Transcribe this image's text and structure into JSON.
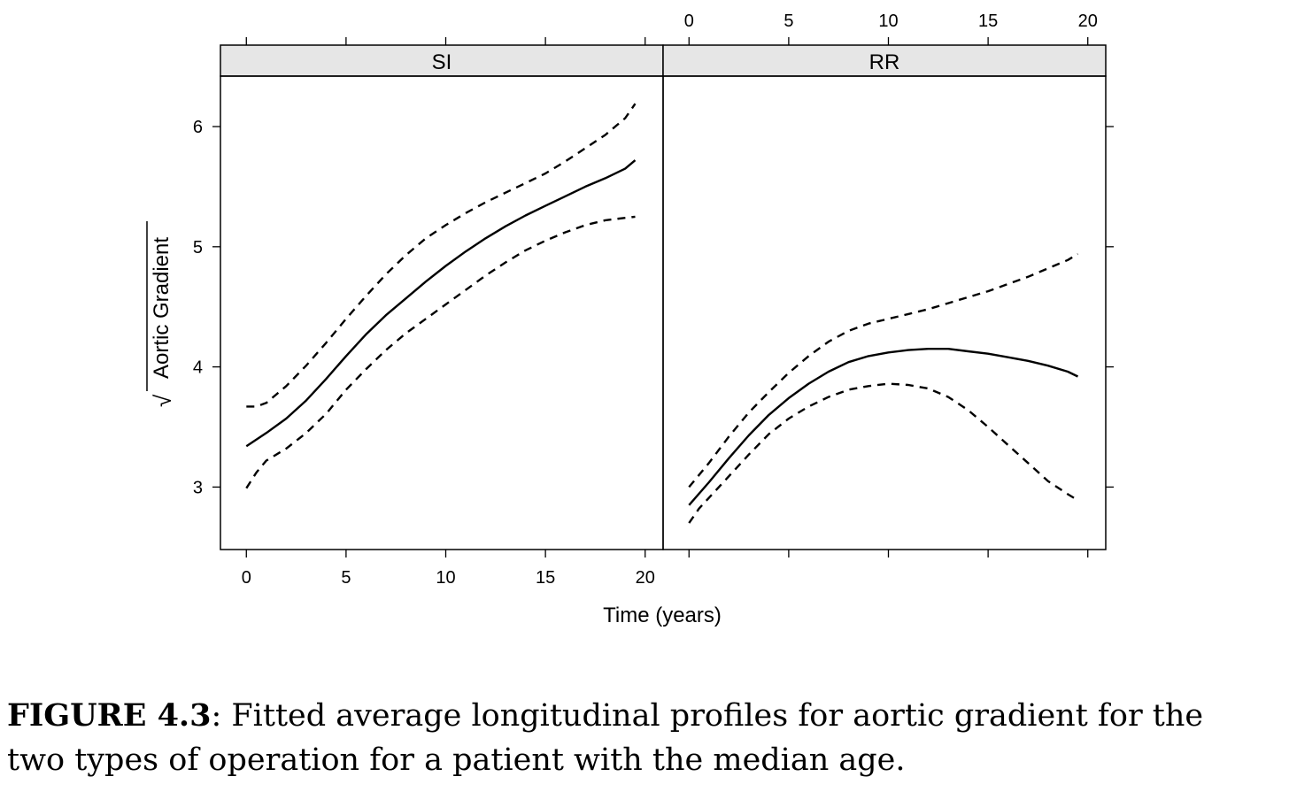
{
  "chart_data": {
    "type": "line",
    "ylabel_symbol": "√",
    "ylabel": "Aortic Gradient",
    "xlabel": "Time (years)",
    "xlim": [
      -1.3,
      20.9
    ],
    "ylim": [
      2.48,
      6.42
    ],
    "xticks": [
      "0",
      "5",
      "10",
      "15",
      "20"
    ],
    "yticks": [
      "3",
      "4",
      "5",
      "6"
    ],
    "xtick_values": [
      0,
      5,
      10,
      15,
      20
    ],
    "ytick_values": [
      3,
      4,
      5,
      6
    ],
    "grid": false,
    "legend": "none",
    "panels": [
      {
        "strip": "SI",
        "series": [
          {
            "style": "solid",
            "x": [
              0,
              1,
              2,
              3,
              4,
              5,
              6,
              7,
              8,
              9,
              10,
              11,
              12,
              13,
              14,
              15,
              16,
              17,
              18,
              19,
              19.5
            ],
            "y": [
              3.34,
              3.45,
              3.57,
              3.72,
              3.9,
              4.09,
              4.27,
              4.43,
              4.57,
              4.71,
              4.84,
              4.96,
              5.07,
              5.17,
              5.26,
              5.34,
              5.42,
              5.5,
              5.57,
              5.65,
              5.72
            ]
          },
          {
            "style": "dashed",
            "x": [
              0,
              0.5,
              1,
              2,
              3,
              4,
              5,
              6,
              7,
              8,
              9,
              10,
              11,
              12,
              13,
              14,
              15,
              16,
              17,
              18,
              19,
              19.5
            ],
            "y": [
              3.67,
              3.67,
              3.7,
              3.84,
              4.01,
              4.2,
              4.4,
              4.59,
              4.77,
              4.93,
              5.07,
              5.18,
              5.28,
              5.37,
              5.45,
              5.53,
              5.61,
              5.71,
              5.82,
              5.93,
              6.07,
              6.19
            ]
          },
          {
            "style": "dashed",
            "x": [
              0,
              0.5,
              1,
              2,
              3,
              4,
              5,
              6,
              7,
              8,
              9,
              10,
              11,
              12,
              13,
              14,
              15,
              16,
              17,
              18,
              19,
              19.5
            ],
            "y": [
              2.99,
              3.12,
              3.22,
              3.32,
              3.45,
              3.61,
              3.81,
              3.98,
              4.14,
              4.28,
              4.4,
              4.52,
              4.64,
              4.76,
              4.87,
              4.97,
              5.05,
              5.12,
              5.18,
              5.22,
              5.24,
              5.25
            ]
          }
        ]
      },
      {
        "strip": "RR",
        "series": [
          {
            "style": "solid",
            "x": [
              0,
              1,
              2,
              3,
              4,
              5,
              6,
              7,
              8,
              9,
              10,
              11,
              12,
              13,
              14,
              15,
              16,
              17,
              18,
              19,
              19.5
            ],
            "y": [
              2.85,
              3.04,
              3.24,
              3.43,
              3.6,
              3.74,
              3.86,
              3.96,
              4.04,
              4.09,
              4.12,
              4.14,
              4.15,
              4.15,
              4.13,
              4.11,
              4.08,
              4.05,
              4.01,
              3.96,
              3.92
            ]
          },
          {
            "style": "dashed",
            "x": [
              0,
              1,
              2,
              3,
              4,
              5,
              6,
              7,
              8,
              9,
              10,
              11,
              12,
              13,
              14,
              15,
              16,
              17,
              18,
              19,
              19.5
            ],
            "y": [
              3.0,
              3.2,
              3.42,
              3.62,
              3.79,
              3.95,
              4.09,
              4.21,
              4.3,
              4.36,
              4.4,
              4.44,
              4.48,
              4.53,
              4.58,
              4.63,
              4.69,
              4.75,
              4.82,
              4.89,
              4.94
            ]
          },
          {
            "style": "dashed",
            "x": [
              0,
              0.5,
              1,
              2,
              3,
              4,
              5,
              6,
              7,
              8,
              9,
              10,
              11,
              12,
              13,
              14,
              15,
              16,
              17,
              18,
              19,
              19.5
            ],
            "y": [
              2.7,
              2.82,
              2.91,
              3.09,
              3.27,
              3.44,
              3.57,
              3.67,
              3.75,
              3.81,
              3.84,
              3.86,
              3.85,
              3.82,
              3.75,
              3.64,
              3.5,
              3.35,
              3.2,
              3.05,
              2.94,
              2.89
            ]
          }
        ]
      }
    ]
  },
  "caption": {
    "label": "FIGURE 4.3",
    "text": ": Fitted average longitudinal profiles for aortic gradient for the two types of operation for a patient with the median age."
  }
}
